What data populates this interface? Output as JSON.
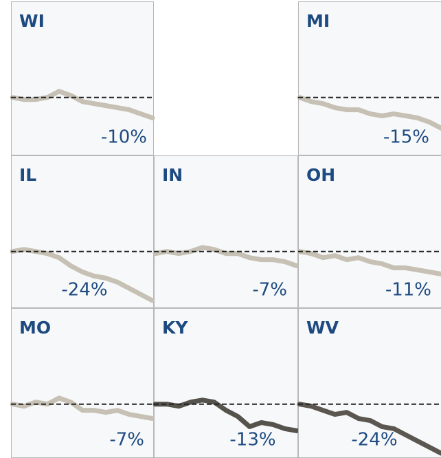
{
  "chart_data": [
    {
      "type": "line",
      "title": "WI",
      "values": [
        0,
        -1,
        -1,
        0,
        3,
        1,
        -2,
        -3,
        -4,
        -5,
        -6,
        -8,
        -10
      ],
      "end_label": "-10%",
      "color": "#c6c1b4",
      "ylim": [
        -27,
        47
      ],
      "baseline": 0
    },
    {
      "type": "line",
      "title": "MI",
      "values": [
        0,
        -2,
        -3,
        -5,
        -6,
        -6,
        -8,
        -9,
        -8,
        -9,
        -10,
        -12,
        -15
      ],
      "end_label": "-15%",
      "color": "#c6c1b4",
      "ylim": [
        -27,
        47
      ],
      "baseline": 0
    },
    {
      "type": "line",
      "title": "IL",
      "values": [
        0,
        1,
        0,
        -1,
        -3,
        -7,
        -10,
        -12,
        -13,
        -15,
        -18,
        -21,
        -24
      ],
      "end_label": "-24%",
      "color": "#c6c1b4",
      "ylim": [
        -27,
        47
      ],
      "baseline": 0
    },
    {
      "type": "line",
      "title": "IN",
      "values": [
        -1,
        0,
        -1,
        0,
        2,
        1,
        -1,
        -1,
        -3,
        -4,
        -4,
        -5,
        -7
      ],
      "end_label": "-7%",
      "color": "#c6c1b4",
      "ylim": [
        -27,
        47
      ],
      "baseline": 0
    },
    {
      "type": "line",
      "title": "OH",
      "values": [
        0,
        -1,
        -3,
        -2,
        -4,
        -3,
        -5,
        -6,
        -8,
        -8,
        -9,
        -10,
        -11
      ],
      "end_label": "-11%",
      "color": "#c6c1b4",
      "ylim": [
        -27,
        47
      ],
      "baseline": 0
    },
    {
      "type": "line",
      "title": "MO",
      "values": [
        0,
        -1,
        1,
        0,
        3,
        1,
        -3,
        -3,
        -4,
        -3,
        -5,
        -6,
        -7
      ],
      "end_label": "-7%",
      "color": "#c6c1b4",
      "ylim": [
        -27,
        47
      ],
      "baseline": 0
    },
    {
      "type": "line",
      "title": "KY",
      "values": [
        0,
        0,
        -1,
        1,
        2,
        1,
        -3,
        -6,
        -11,
        -9,
        -10,
        -12,
        -13
      ],
      "end_label": "-13%",
      "color": "#55534b",
      "ylim": [
        -27,
        47
      ],
      "baseline": 0
    },
    {
      "type": "line",
      "title": "WV",
      "values": [
        0,
        -1,
        -3,
        -5,
        -4,
        -7,
        -8,
        -11,
        -12,
        -15,
        -18,
        -21,
        -24
      ],
      "end_label": "-24%",
      "color": "#5b5750",
      "ylim": [
        -27,
        47
      ],
      "baseline": 0
    }
  ]
}
